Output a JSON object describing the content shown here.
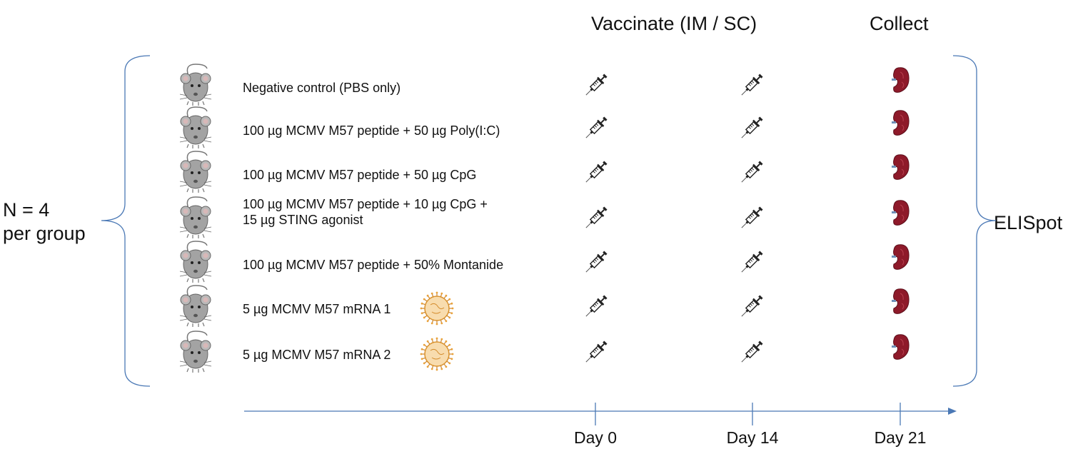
{
  "headers": {
    "vaccinate": "Vaccinate (IM / SC)",
    "collect": "Collect"
  },
  "left_label": {
    "line1": "N = 4",
    "line2": "per group"
  },
  "right_label": "ELISpot",
  "groups": [
    {
      "line1": "Negative control (PBS only)",
      "line2": "",
      "nanoparticle": false
    },
    {
      "line1": "100 µg MCMV M57 peptide + 50 µg Poly(I:C)",
      "line2": "",
      "nanoparticle": false
    },
    {
      "line1": "100 µg MCMV M57 peptide + 50 µg CpG",
      "line2": "",
      "nanoparticle": false
    },
    {
      "line1": "100 µg MCMV M57 peptide + 10 µg CpG +",
      "line2": "15 µg STING agonist",
      "nanoparticle": false
    },
    {
      "line1": "100 µg MCMV M57 peptide + 50% Montanide",
      "line2": "",
      "nanoparticle": false
    },
    {
      "line1": "5 µg MCMV M57 mRNA 1",
      "line2": "",
      "nanoparticle": true
    },
    {
      "line1": "5 µg MCMV M57 mRNA 2",
      "line2": "",
      "nanoparticle": true
    }
  ],
  "timeline": {
    "days": [
      "Day 0",
      "Day 14",
      "Day 21"
    ]
  },
  "icons": {
    "mouse": "mouse-icon",
    "syringe": "syringe-icon",
    "spleen": "spleen-icon",
    "nanoparticle": "lipid-nanoparticle-icon"
  },
  "colors": {
    "bracket": "#4a78b5",
    "axis": "#4a78b5",
    "mouse": "#9a9a9a",
    "spleen": "#8e1a2a",
    "nanoparticle": "#e9a23b"
  }
}
